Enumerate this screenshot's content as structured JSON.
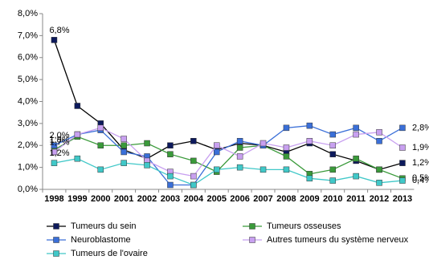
{
  "chart_data": {
    "type": "line",
    "categories": [
      "1998",
      "1999",
      "2000",
      "2001",
      "2002",
      "2003",
      "2004",
      "2005",
      "2006",
      "2007",
      "2008",
      "2009",
      "2010",
      "2011",
      "2012",
      "2013"
    ],
    "ylim": [
      0,
      8
    ],
    "yticks": [
      {
        "value": 0,
        "label": "0,0%"
      },
      {
        "value": 1,
        "label": "1,0%"
      },
      {
        "value": 2,
        "label": "2,0%"
      },
      {
        "value": 3,
        "label": "3,0%"
      },
      {
        "value": 4,
        "label": "4,0%"
      },
      {
        "value": 5,
        "label": "5,0%"
      },
      {
        "value": 6,
        "label": "6,0%"
      },
      {
        "value": 7,
        "label": "7,0%"
      },
      {
        "value": 8,
        "label": "8,0%"
      }
    ],
    "grid": false,
    "legend": "bottom",
    "series": [
      {
        "name": "Tumeurs du sein",
        "color": "#0d1a5c",
        "values": [
          6.8,
          3.8,
          3.0,
          1.8,
          1.4,
          2.0,
          2.2,
          1.8,
          2.1,
          2.0,
          1.7,
          2.1,
          1.6,
          1.3,
          0.9,
          1.2
        ],
        "value_labels": [
          "6,8%",
          null,
          null,
          null,
          null,
          null,
          null,
          null,
          null,
          null,
          null,
          null,
          null,
          null,
          null,
          "1,2%"
        ]
      },
      {
        "name": "Tumeurs osseuses",
        "color": "#3a9a3a",
        "values": [
          1.8,
          2.4,
          2.0,
          2.0,
          2.1,
          1.6,
          1.3,
          0.8,
          1.9,
          2.0,
          1.5,
          0.7,
          0.9,
          1.4,
          0.9,
          0.5
        ],
        "value_labels": [
          "1,8%",
          null,
          null,
          null,
          null,
          null,
          null,
          null,
          null,
          null,
          null,
          null,
          null,
          null,
          null,
          "0,5%"
        ]
      },
      {
        "name": "Neuroblastome",
        "color": "#3a6fd8",
        "values": [
          2.0,
          2.5,
          2.7,
          1.7,
          1.5,
          0.2,
          0.2,
          1.7,
          2.2,
          2.0,
          2.8,
          2.9,
          2.5,
          2.8,
          2.2,
          2.8
        ],
        "value_labels": [
          "2,0%",
          null,
          null,
          null,
          null,
          null,
          null,
          null,
          null,
          null,
          null,
          null,
          null,
          null,
          null,
          "2,8%"
        ]
      },
      {
        "name": "Autres tumeurs du système nerveux",
        "color": "#c8a0f0",
        "values": [
          1.7,
          2.5,
          2.8,
          2.3,
          1.3,
          0.8,
          0.6,
          2.0,
          1.5,
          2.1,
          1.9,
          2.2,
          2.0,
          2.5,
          2.6,
          1.9
        ],
        "value_labels": [
          "1,7%",
          null,
          null,
          null,
          null,
          null,
          null,
          null,
          null,
          null,
          null,
          null,
          null,
          null,
          null,
          "1,9%"
        ]
      },
      {
        "name": "Tumeurs de l'ovaire",
        "color": "#40c8c8",
        "values": [
          1.2,
          1.4,
          0.9,
          1.2,
          1.1,
          0.6,
          0.2,
          0.9,
          1.0,
          0.9,
          0.9,
          0.5,
          0.4,
          0.6,
          0.3,
          0.4
        ],
        "value_labels": [
          "1,2%",
          null,
          null,
          null,
          null,
          null,
          null,
          null,
          null,
          null,
          null,
          null,
          null,
          null,
          null,
          "0,4%"
        ]
      }
    ]
  }
}
